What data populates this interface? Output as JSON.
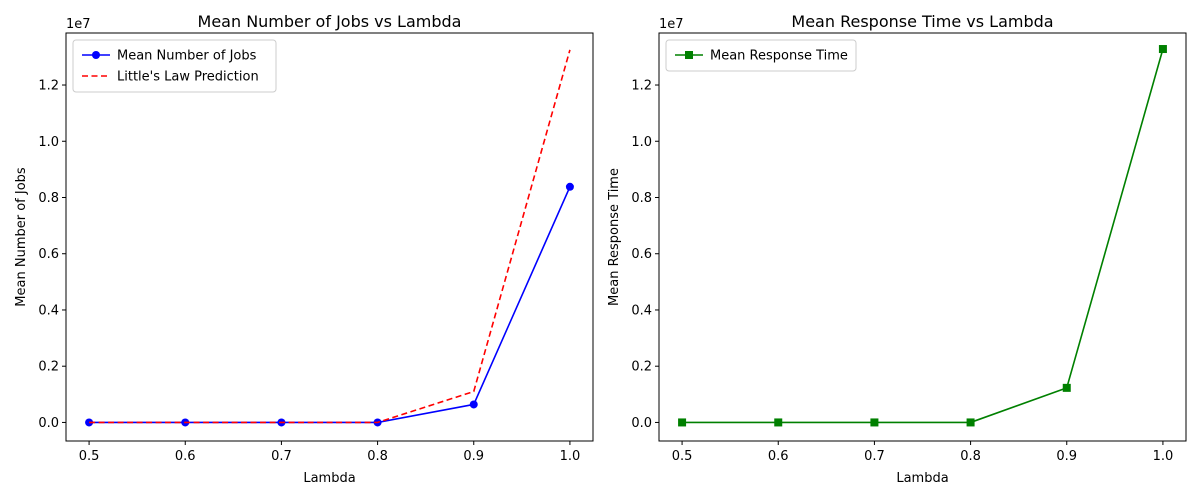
{
  "chart_data": [
    {
      "type": "line",
      "title": "Mean Number of Jobs vs Lambda",
      "xlabel": "Lambda",
      "ylabel": "Mean Number of Jobs",
      "x": [
        0.5,
        0.6,
        0.7,
        0.8,
        0.9,
        1.0
      ],
      "x_ticks": [
        "0.5",
        "0.6",
        "0.7",
        "0.8",
        "0.9",
        "1.0"
      ],
      "y_ticks": [
        "0.0",
        "0.2",
        "0.4",
        "0.6",
        "0.8",
        "1.0",
        "1.2"
      ],
      "y_tick_values": [
        0,
        2000000,
        4000000,
        6000000,
        8000000,
        10000000,
        12000000
      ],
      "y_offset_label": "1e7",
      "xlim": [
        0.476,
        1.024
      ],
      "ylim": [
        -660000,
        13850000
      ],
      "legend_position": "upper left",
      "grid": false,
      "series": [
        {
          "name": "Mean Number of Jobs",
          "values": [
            1,
            2,
            4,
            8,
            640000,
            8380000
          ],
          "color": "#0000ff",
          "line_style": "solid",
          "marker": "circle"
        },
        {
          "name": "Little's Law Prediction",
          "values": [
            1,
            2,
            4,
            8,
            1100000,
            13250000
          ],
          "color": "#ff0000",
          "line_style": "dashed",
          "marker": "none"
        }
      ]
    },
    {
      "type": "line",
      "title": "Mean Response Time vs Lambda",
      "xlabel": "Lambda",
      "ylabel": "Mean Response Time",
      "x": [
        0.5,
        0.6,
        0.7,
        0.8,
        0.9,
        1.0
      ],
      "x_ticks": [
        "0.5",
        "0.6",
        "0.7",
        "0.8",
        "0.9",
        "1.0"
      ],
      "y_ticks": [
        "0.0",
        "0.2",
        "0.4",
        "0.6",
        "0.8",
        "1.0",
        "1.2"
      ],
      "y_tick_values": [
        0,
        2000000,
        4000000,
        6000000,
        8000000,
        10000000,
        12000000
      ],
      "y_offset_label": "1e7",
      "xlim": [
        0.476,
        1.024
      ],
      "ylim": [
        -660000,
        13850000
      ],
      "legend_position": "upper left",
      "grid": false,
      "series": [
        {
          "name": "Mean Response Time",
          "values": [
            2,
            4,
            8,
            15,
            1230000,
            13280000
          ],
          "color": "#008000",
          "line_style": "solid",
          "marker": "square"
        }
      ]
    }
  ]
}
